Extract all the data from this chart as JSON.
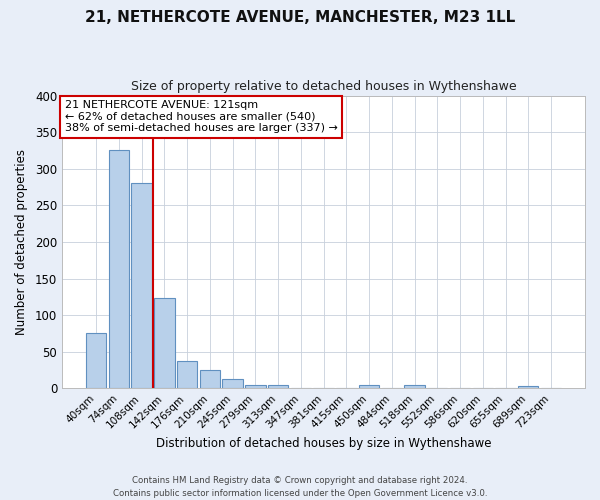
{
  "title": "21, NETHERCOTE AVENUE, MANCHESTER, M23 1LL",
  "subtitle": "Size of property relative to detached houses in Wythenshawe",
  "xlabel": "Distribution of detached houses by size in Wythenshawe",
  "ylabel": "Number of detached properties",
  "bar_labels": [
    "40sqm",
    "74sqm",
    "108sqm",
    "142sqm",
    "176sqm",
    "210sqm",
    "245sqm",
    "279sqm",
    "313sqm",
    "347sqm",
    "381sqm",
    "415sqm",
    "450sqm",
    "484sqm",
    "518sqm",
    "552sqm",
    "586sqm",
    "620sqm",
    "655sqm",
    "689sqm",
    "723sqm"
  ],
  "bar_values": [
    75,
    325,
    280,
    124,
    38,
    25,
    13,
    4,
    4,
    0,
    0,
    0,
    5,
    0,
    4,
    0,
    0,
    0,
    0,
    3,
    0
  ],
  "bar_color": "#b8d0ea",
  "bar_edge_color": "#6090c0",
  "vline_color": "#cc0000",
  "vline_x_idx": 2.5,
  "ylim": [
    0,
    400
  ],
  "yticks": [
    0,
    50,
    100,
    150,
    200,
    250,
    300,
    350,
    400
  ],
  "annotation_title": "21 NETHERCOTE AVENUE: 121sqm",
  "annotation_line1": "← 62% of detached houses are smaller (540)",
  "annotation_line2": "38% of semi-detached houses are larger (337) →",
  "annotation_box_color": "white",
  "annotation_box_edge_color": "#cc0000",
  "footer_line1": "Contains HM Land Registry data © Crown copyright and database right 2024.",
  "footer_line2": "Contains public sector information licensed under the Open Government Licence v3.0.",
  "fig_background_color": "#e8eef8",
  "plot_background_color": "white",
  "grid_color": "#c8d0dc"
}
